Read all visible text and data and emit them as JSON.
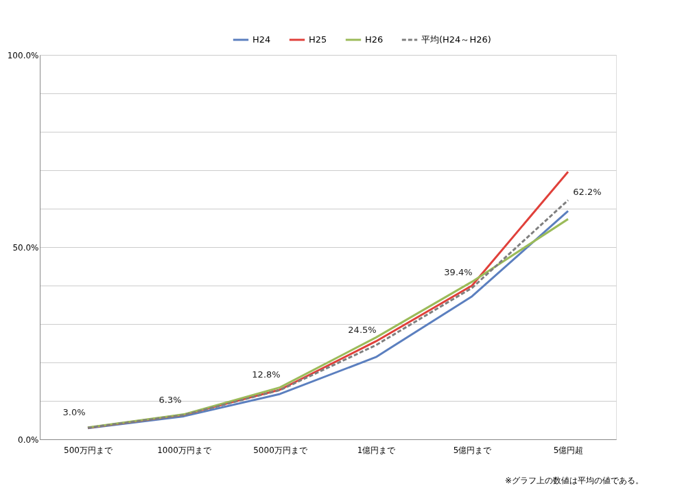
{
  "chart_data": {
    "type": "line",
    "categories": [
      "500万円まで",
      "1000万円まで",
      "5000万円まで",
      "1億円まで",
      "5億円まで",
      "5億円超"
    ],
    "series": [
      {
        "name": "H24",
        "color": "#5b7fbf",
        "values": [
          2.9,
          6.0,
          11.8,
          21.4,
          37.2,
          59.4
        ]
      },
      {
        "name": "H25",
        "color": "#e0403a",
        "values": [
          3.0,
          6.4,
          12.9,
          25.5,
          40.0,
          69.6
        ]
      },
      {
        "name": "H26",
        "color": "#9bbb59",
        "values": [
          3.1,
          6.5,
          13.5,
          26.5,
          41.0,
          57.3
        ]
      },
      {
        "name": "平均(H24～H26)",
        "color": "#7f7f7f",
        "line_style": "dashed",
        "values": [
          3.0,
          6.3,
          12.8,
          24.5,
          39.4,
          62.2
        ],
        "value_labels": [
          "3.0%",
          "6.3%",
          "12.8%",
          "24.5%",
          "39.4%",
          "62.2%"
        ]
      }
    ],
    "ylim": [
      0,
      100
    ],
    "yticks": [
      {
        "value": 0,
        "label": "0.0%"
      },
      {
        "value": 10,
        "label": null
      },
      {
        "value": 20,
        "label": null
      },
      {
        "value": 30,
        "label": null
      },
      {
        "value": 40,
        "label": null
      },
      {
        "value": 50,
        "label": "50.0%"
      },
      {
        "value": 60,
        "label": null
      },
      {
        "value": 70,
        "label": null
      },
      {
        "value": 80,
        "label": null
      },
      {
        "value": 90,
        "label": null
      },
      {
        "value": 100,
        "label": "100.0%"
      }
    ],
    "grid": "y",
    "legend": "top right",
    "line_style": "solid",
    "marker": "none",
    "annotations": [
      "※グラフ上の数値は平均の値である。"
    ]
  }
}
